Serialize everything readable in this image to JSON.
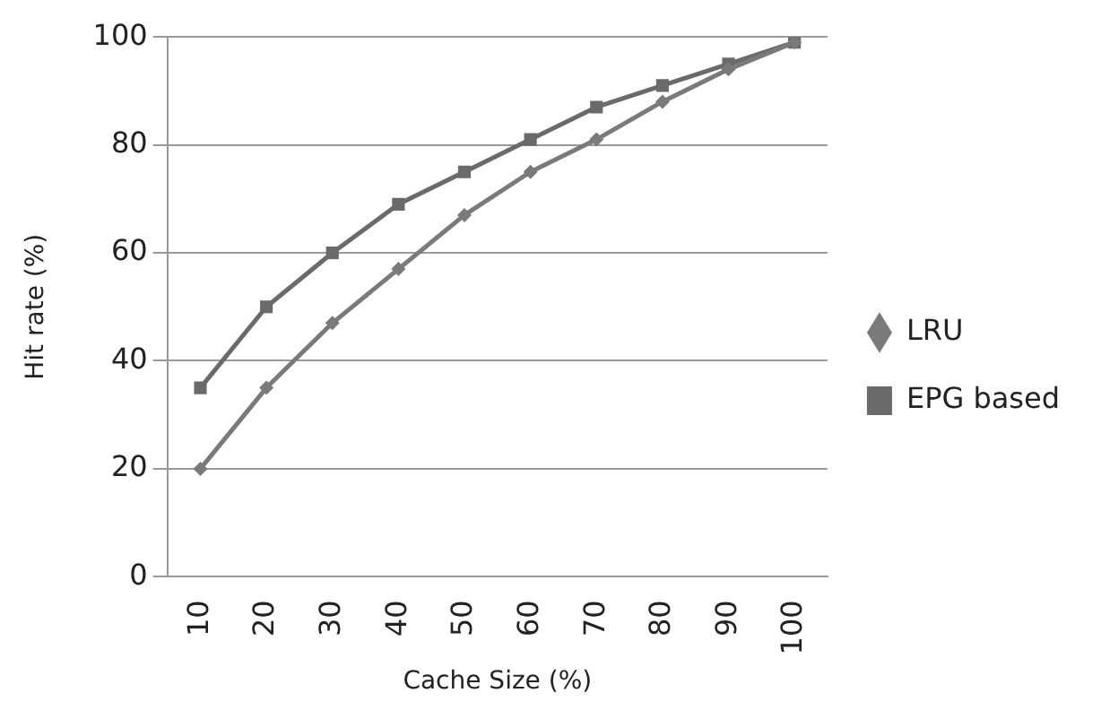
{
  "chart_data": {
    "type": "line",
    "xlabel": "Cache Size (%)",
    "ylabel": "Hit rate (%)",
    "categories": [
      "10",
      "20",
      "30",
      "40",
      "50",
      "60",
      "70",
      "80",
      "90",
      "100"
    ],
    "series": [
      {
        "name": "LRU",
        "color": "#7a7a7a",
        "marker": "diamond",
        "values": [
          20,
          35,
          47,
          57,
          67,
          75,
          81,
          88,
          94,
          99
        ]
      },
      {
        "name": "EPG based",
        "color": "#6a6a6a",
        "marker": "square",
        "values": [
          35,
          50,
          60,
          69,
          75,
          81,
          87,
          91,
          95,
          99
        ]
      }
    ],
    "ylim": [
      0,
      100
    ],
    "yticks": [
      0,
      20,
      40,
      60,
      80,
      100
    ],
    "grid": "y",
    "legend": "right",
    "line_style": "solid"
  }
}
